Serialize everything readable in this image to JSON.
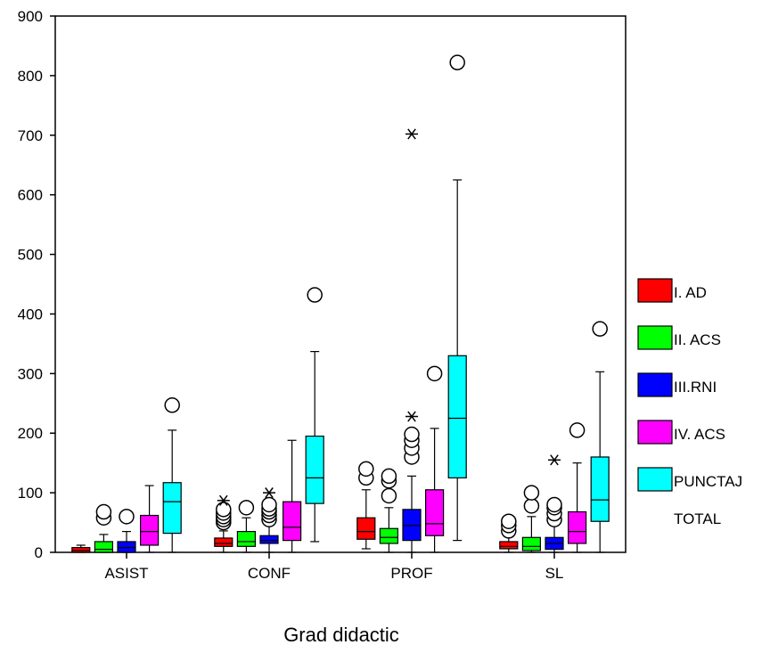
{
  "chart_data": {
    "type": "boxplot",
    "xlabel": "Grad didactic",
    "ylabel": "",
    "ylim": [
      0,
      900
    ],
    "y_ticks": [
      0,
      100,
      200,
      300,
      400,
      500,
      600,
      700,
      800,
      900
    ],
    "categories": [
      "ASIST",
      "CONF",
      "PROF",
      "SL"
    ],
    "legend": {
      "placement": "right",
      "entries": [
        {
          "lines": [
            "I. AD"
          ],
          "color": "#ff0000"
        },
        {
          "lines": [
            "II. ACS"
          ],
          "color": "#00ff00"
        },
        {
          "lines": [
            "III.RNI"
          ],
          "color": "#0000ff"
        },
        {
          "lines": [
            "IV. ACS"
          ],
          "color": "#ff00ff"
        },
        {
          "lines": [
            "PUNCTAJ",
            "TOTAL"
          ],
          "color": "#00ffff"
        }
      ]
    },
    "series": [
      {
        "legend_index": 0,
        "boxes": [
          {
            "min": 0,
            "q1": 0,
            "median": 3,
            "q3": 8,
            "max": 12,
            "outliers": [],
            "extremes": []
          },
          {
            "min": 0,
            "q1": 10,
            "median": 15,
            "q3": 24,
            "max": 36,
            "outliers": [
              50,
              55,
              60,
              66,
              72
            ],
            "extremes": [
              87
            ]
          },
          {
            "min": 6,
            "q1": 22,
            "median": 35,
            "q3": 58,
            "max": 105,
            "outliers": [
              125,
              140
            ],
            "extremes": []
          },
          {
            "min": 0,
            "q1": 6,
            "median": 10,
            "q3": 18,
            "max": 28,
            "outliers": [
              36,
              45,
              52
            ],
            "extremes": []
          }
        ]
      },
      {
        "legend_index": 1,
        "boxes": [
          {
            "min": 0,
            "q1": 0,
            "median": 5,
            "q3": 18,
            "max": 30,
            "outliers": [
              58,
              68
            ],
            "extremes": []
          },
          {
            "min": 0,
            "q1": 10,
            "median": 18,
            "q3": 35,
            "max": 58,
            "outliers": [
              75
            ],
            "extremes": []
          },
          {
            "min": 0,
            "q1": 15,
            "median": 25,
            "q3": 40,
            "max": 75,
            "outliers": [
              95,
              120,
              128
            ],
            "extremes": []
          },
          {
            "min": 0,
            "q1": 3,
            "median": 10,
            "q3": 25,
            "max": 60,
            "outliers": [
              78,
              100
            ],
            "extremes": []
          }
        ]
      },
      {
        "legend_index": 2,
        "boxes": [
          {
            "min": 0,
            "q1": 0,
            "median": 8,
            "q3": 18,
            "max": 35,
            "outliers": [
              60
            ],
            "extremes": []
          },
          {
            "min": 0,
            "q1": 15,
            "median": 20,
            "q3": 28,
            "max": 45,
            "outliers": [
              55,
              62,
              68,
              73,
              80
            ],
            "extremes": [
              100
            ]
          },
          {
            "min": 0,
            "q1": 20,
            "median": 45,
            "q3": 72,
            "max": 128,
            "outliers": [
              160,
              175,
              188,
              198
            ],
            "extremes": [
              228,
              702
            ]
          },
          {
            "min": 0,
            "q1": 5,
            "median": 15,
            "q3": 25,
            "max": 45,
            "outliers": [
              55,
              65,
              75,
              80
            ],
            "extremes": [
              155
            ]
          }
        ]
      },
      {
        "legend_index": 3,
        "boxes": [
          {
            "min": 0,
            "q1": 12,
            "median": 35,
            "q3": 62,
            "max": 112,
            "outliers": [],
            "extremes": []
          },
          {
            "min": 0,
            "q1": 20,
            "median": 42,
            "q3": 85,
            "max": 188,
            "outliers": [],
            "extremes": []
          },
          {
            "min": 0,
            "q1": 28,
            "median": 48,
            "q3": 105,
            "max": 208,
            "outliers": [
              300
            ],
            "extremes": []
          },
          {
            "min": 0,
            "q1": 15,
            "median": 35,
            "q3": 68,
            "max": 150,
            "outliers": [
              205
            ],
            "extremes": []
          }
        ]
      },
      {
        "legend_index": 4,
        "boxes": [
          {
            "min": 0,
            "q1": 32,
            "median": 85,
            "q3": 117,
            "max": 205,
            "outliers": [
              247
            ],
            "extremes": []
          },
          {
            "min": 18,
            "q1": 82,
            "median": 125,
            "q3": 195,
            "max": 337,
            "outliers": [
              432
            ],
            "extremes": []
          },
          {
            "min": 20,
            "q1": 125,
            "median": 225,
            "q3": 330,
            "max": 625,
            "outliers": [
              822
            ],
            "extremes": []
          },
          {
            "min": 0,
            "q1": 52,
            "median": 88,
            "q3": 160,
            "max": 303,
            "outliers": [
              375
            ],
            "extremes": []
          }
        ]
      }
    ]
  }
}
